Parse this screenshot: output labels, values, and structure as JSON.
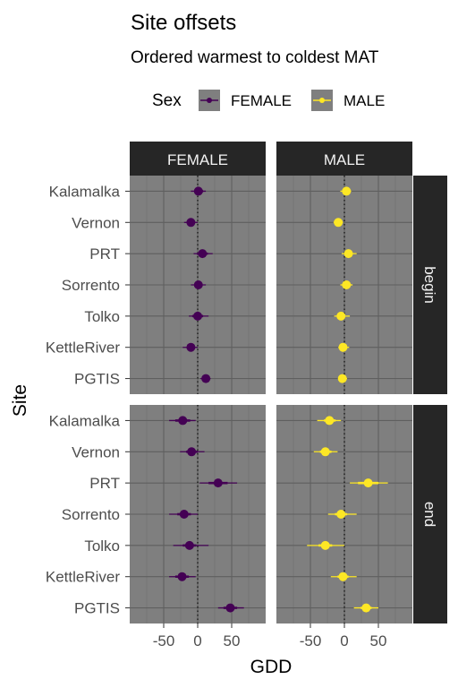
{
  "chart_data": {
    "type": "scatter",
    "title": "Site offsets",
    "subtitle": "Ordered warmest to coldest MAT",
    "xlabel": "GDD",
    "ylabel": "Site",
    "legend": {
      "title": "Sex",
      "placement": "top",
      "entries": [
        {
          "name": "FEMALE",
          "color": "#440154"
        },
        {
          "name": "MALE",
          "color": "#fde725"
        }
      ]
    },
    "columns": [
      "FEMALE",
      "MALE"
    ],
    "rows": [
      "begin",
      "end"
    ],
    "sites": [
      "Kalamalka",
      "Vernon",
      "PRT",
      "Sorrento",
      "Tolko",
      "KettleRiver",
      "PGTIS"
    ],
    "xlim": [
      -100,
      100
    ],
    "xticks": [
      -50,
      0,
      50
    ],
    "tick_labels": [
      "-50",
      "0",
      "50"
    ],
    "grid": true,
    "reference_line": 0,
    "panels": [
      {
        "col": "FEMALE",
        "row": "begin",
        "color": "#440154",
        "points": [
          {
            "site": "Kalamalka",
            "value": 1,
            "lo": -5,
            "hi": 8,
            "lo2": -10,
            "hi2": 12
          },
          {
            "site": "Vernon",
            "value": -10,
            "lo": -16,
            "hi": -4,
            "lo2": -20,
            "hi2": 0
          },
          {
            "site": "PRT",
            "value": 7,
            "lo": -1,
            "hi": 15,
            "lo2": -6,
            "hi2": 22
          },
          {
            "site": "Sorrento",
            "value": 1,
            "lo": -5,
            "hi": 7,
            "lo2": -10,
            "hi2": 12
          },
          {
            "site": "Tolko",
            "value": 0,
            "lo": -8,
            "hi": 8,
            "lo2": -13,
            "hi2": 16
          },
          {
            "site": "KettleRiver",
            "value": -10,
            "lo": -16,
            "hi": -4,
            "lo2": -22,
            "hi2": 0
          },
          {
            "site": "PGTIS",
            "value": 12,
            "lo": 7,
            "hi": 17,
            "lo2": 4,
            "hi2": 19
          }
        ]
      },
      {
        "col": "MALE",
        "row": "begin",
        "color": "#fde725",
        "points": [
          {
            "site": "Kalamalka",
            "value": 3,
            "lo": -2,
            "hi": 8,
            "lo2": -6,
            "hi2": 10
          },
          {
            "site": "Vernon",
            "value": -9,
            "lo": -13,
            "hi": -4,
            "lo2": -16,
            "hi2": -2
          },
          {
            "site": "PRT",
            "value": 6,
            "lo": 0,
            "hi": 12,
            "lo2": -4,
            "hi2": 18
          },
          {
            "site": "Sorrento",
            "value": 3,
            "lo": -2,
            "hi": 8,
            "lo2": -6,
            "hi2": 12
          },
          {
            "site": "Tolko",
            "value": -5,
            "lo": -10,
            "hi": 1,
            "lo2": -15,
            "hi2": 8
          },
          {
            "site": "KettleRiver",
            "value": -2,
            "lo": -6,
            "hi": 2,
            "lo2": -9,
            "hi2": 7
          },
          {
            "site": "PGTIS",
            "value": -3,
            "lo": -6,
            "hi": 1,
            "lo2": -8,
            "hi2": 4
          }
        ]
      },
      {
        "col": "FEMALE",
        "row": "end",
        "color": "#440154",
        "points": [
          {
            "site": "Kalamalka",
            "value": -22,
            "lo": -33,
            "hi": -11,
            "lo2": -42,
            "hi2": -3
          },
          {
            "site": "Vernon",
            "value": -9,
            "lo": -17,
            "hi": 0,
            "lo2": -26,
            "hi2": 10
          },
          {
            "site": "PRT",
            "value": 30,
            "lo": 16,
            "hi": 44,
            "lo2": 3,
            "hi2": 58
          },
          {
            "site": "Sorrento",
            "value": -20,
            "lo": -30,
            "hi": -10,
            "lo2": -42,
            "hi2": 0
          },
          {
            "site": "Tolko",
            "value": -12,
            "lo": -22,
            "hi": -2,
            "lo2": -36,
            "hi2": 16
          },
          {
            "site": "KettleRiver",
            "value": -23,
            "lo": -33,
            "hi": -13,
            "lo2": -42,
            "hi2": -3
          },
          {
            "site": "PGTIS",
            "value": 48,
            "lo": 38,
            "hi": 58,
            "lo2": 30,
            "hi2": 68
          }
        ]
      },
      {
        "col": "MALE",
        "row": "end",
        "color": "#fde725",
        "points": [
          {
            "site": "Kalamalka",
            "value": -22,
            "lo": -30,
            "hi": -13,
            "lo2": -40,
            "hi2": -5
          },
          {
            "site": "Vernon",
            "value": -28,
            "lo": -36,
            "hi": -19,
            "lo2": -45,
            "hi2": -10
          },
          {
            "site": "PRT",
            "value": 35,
            "lo": 20,
            "hi": 50,
            "lo2": 8,
            "hi2": 64
          },
          {
            "site": "Sorrento",
            "value": -5,
            "lo": -14,
            "hi": 4,
            "lo2": -24,
            "hi2": 18
          },
          {
            "site": "Tolko",
            "value": -28,
            "lo": -38,
            "hi": -18,
            "lo2": -55,
            "hi2": 0
          },
          {
            "site": "KettleRiver",
            "value": -2,
            "lo": -10,
            "hi": 6,
            "lo2": -20,
            "hi2": 18
          },
          {
            "site": "PGTIS",
            "value": 32,
            "lo": 24,
            "hi": 40,
            "lo2": 14,
            "hi2": 50
          }
        ]
      }
    ]
  }
}
